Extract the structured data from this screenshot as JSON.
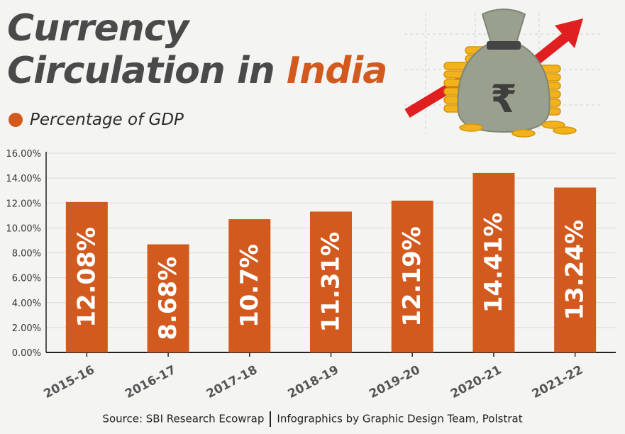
{
  "title": {
    "line1": "Currency",
    "line2_prefix": "Circulation in ",
    "line2_accent": "India"
  },
  "legend": {
    "label": "Percentage of GDP"
  },
  "colors": {
    "bar": "#d35a1f",
    "title": "#4a4a4a",
    "accent": "#d35a1f",
    "grid": "#d9d9d9"
  },
  "illustration": {
    "icon": "money-bag-with-rupee-and-rising-arrow",
    "symbol": "₹"
  },
  "source": {
    "left": "Source: SBI Research Ecowrap",
    "right": "Infographics by Graphic Design Team, Polstrat"
  },
  "chart_data": {
    "type": "bar",
    "title": "Currency Circulation in India",
    "xlabel": "",
    "ylabel": "",
    "series": [
      {
        "name": "Percentage of GDP",
        "values": [
          12.08,
          8.68,
          10.7,
          11.31,
          12.19,
          14.41,
          13.24
        ],
        "labels": [
          "12.08%",
          "8.68%",
          "10.7%",
          "11.31%",
          "12.19%",
          "14.41%",
          "13.24%"
        ]
      }
    ],
    "categories": [
      "2015-16",
      "2016-17",
      "2017-18",
      "2018-19",
      "2019-20",
      "2020-21",
      "2021-22"
    ],
    "ylim": [
      0,
      16
    ],
    "yticks": [
      0,
      2,
      4,
      6,
      8,
      10,
      12,
      14,
      16
    ],
    "ytick_labels": [
      "0.00%",
      "2.00%",
      "4.00%",
      "6.00%",
      "8.00%",
      "10.00%",
      "12.00%",
      "14.00%",
      "16.00%"
    ],
    "grid": true,
    "legend_position": "top-left"
  }
}
